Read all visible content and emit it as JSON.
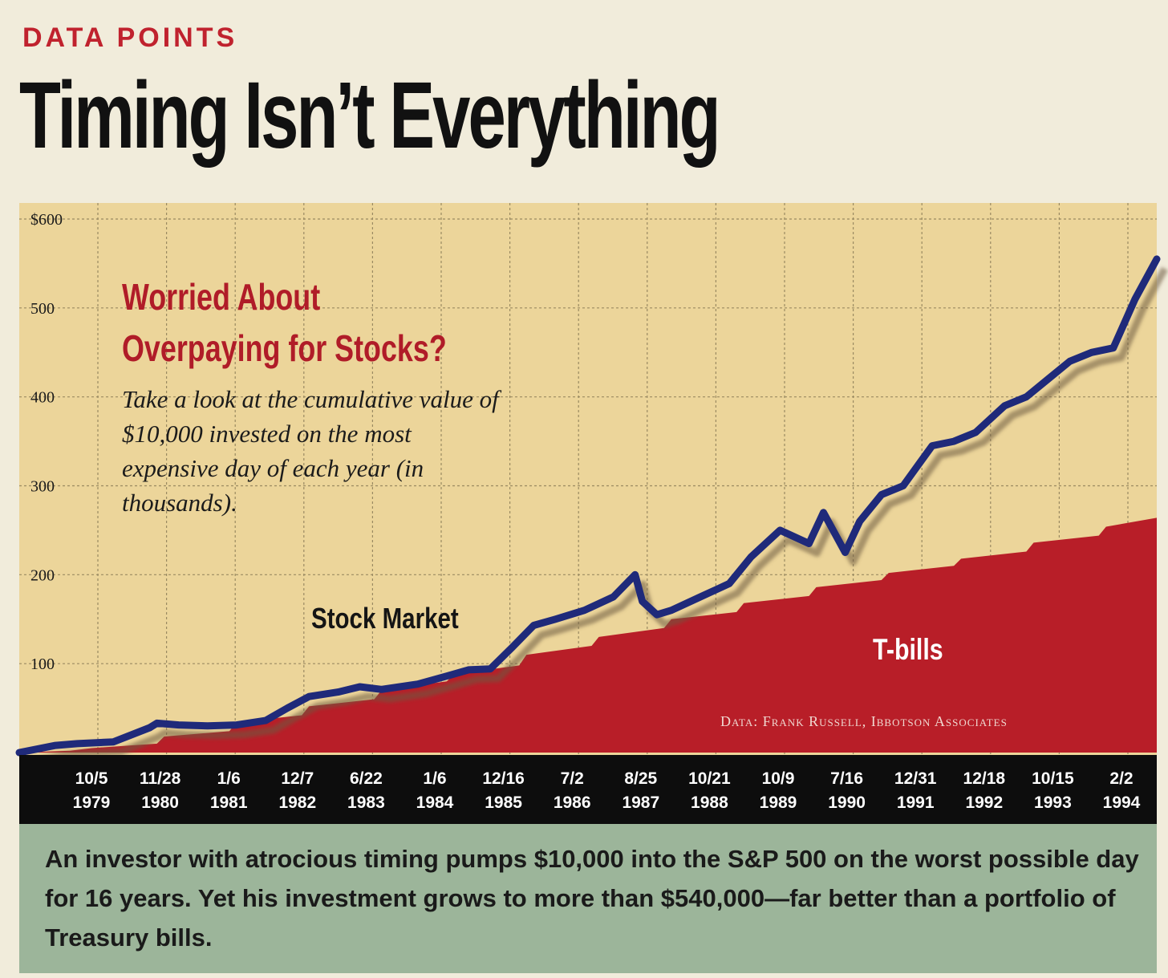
{
  "header": {
    "kicker": "DATA POINTS",
    "title": "Timing Isn’t Everything"
  },
  "annotation": {
    "subtitle_line1": "Worried About",
    "subtitle_line2": "Overpaying for Stocks?",
    "description": "Take a look at the cumulative value of $10,000 invested on the most expensive day of each year (in thousands).",
    "stock_label": "Stock Market",
    "tbills_label": "T-bills",
    "credit": "Data: Frank Russell, Ibbotson Associates"
  },
  "caption": "An investor with atrocious timing pumps $10,000 into the S&P 500 on the worst possible day for 16 years. Yet his investment grows to more than $540,000—far better than a portfolio of Treasury bills.",
  "colors": {
    "plot_background": "#ecd59a",
    "tbills_fill": "#b81e28",
    "stock_line": "#1f2a7a",
    "axis_band": "#0d0d0d",
    "caption_background": "#9cb59a",
    "headline_accent": "#c0222e"
  },
  "chart_data": {
    "type": "area",
    "ylim": [
      0,
      600
    ],
    "y_ticks": [
      "$600",
      "500",
      "400",
      "300",
      "200",
      "100"
    ],
    "y_tick_values": [
      600,
      500,
      400,
      300,
      200,
      100
    ],
    "categories": [
      {
        "date": "10/5",
        "year": "1979"
      },
      {
        "date": "11/28",
        "year": "1980"
      },
      {
        "date": "1/6",
        "year": "1981"
      },
      {
        "date": "12/7",
        "year": "1982"
      },
      {
        "date": "6/22",
        "year": "1983"
      },
      {
        "date": "1/6",
        "year": "1984"
      },
      {
        "date": "12/16",
        "year": "1985"
      },
      {
        "date": "7/2",
        "year": "1986"
      },
      {
        "date": "8/25",
        "year": "1987"
      },
      {
        "date": "10/21",
        "year": "1988"
      },
      {
        "date": "10/9",
        "year": "1989"
      },
      {
        "date": "7/16",
        "year": "1990"
      },
      {
        "date": "12/31",
        "year": "1991"
      },
      {
        "date": "12/18",
        "year": "1992"
      },
      {
        "date": "10/15",
        "year": "1993"
      },
      {
        "date": "2/2",
        "year": "1994"
      }
    ],
    "series": [
      {
        "name": "Stock Market",
        "x": [
          1979.0,
          1979.5,
          1979.8,
          1980.3,
          1980.8,
          1980.9,
          1981.2,
          1981.6,
          1982.0,
          1982.4,
          1982.7,
          1983.0,
          1983.4,
          1983.7,
          1984.0,
          1984.5,
          1984.9,
          1985.2,
          1985.5,
          1985.8,
          1986.1,
          1986.4,
          1986.8,
          1987.2,
          1987.5,
          1987.6,
          1987.8,
          1988.0,
          1988.4,
          1988.8,
          1989.1,
          1989.5,
          1989.9,
          1990.1,
          1990.4,
          1990.6,
          1990.9,
          1991.2,
          1991.6,
          1991.9,
          1992.2,
          1992.6,
          1992.9,
          1993.2,
          1993.5,
          1993.8,
          1994.1,
          1994.4,
          1994.7
        ],
        "values": [
          0,
          8,
          10,
          12,
          28,
          33,
          31,
          30,
          31,
          36,
          50,
          63,
          68,
          74,
          71,
          77,
          86,
          93,
          94,
          118,
          143,
          150,
          160,
          175,
          200,
          170,
          155,
          160,
          175,
          190,
          220,
          250,
          235,
          270,
          225,
          260,
          290,
          300,
          345,
          350,
          360,
          390,
          400,
          420,
          440,
          450,
          455,
          510,
          555
        ]
      },
      {
        "name": "T-bills",
        "x": [
          1979.0,
          1979.7,
          1980.0,
          1980.9,
          1981.0,
          1981.9,
          1982.0,
          1982.9,
          1983.0,
          1983.9,
          1984.0,
          1984.9,
          1985.0,
          1985.9,
          1986.0,
          1986.9,
          1987.0,
          1987.9,
          1988.0,
          1988.9,
          1989.0,
          1989.9,
          1990.0,
          1990.9,
          1991.0,
          1991.9,
          1992.0,
          1992.9,
          1993.0,
          1993.9,
          1994.0,
          1994.7
        ],
        "values": [
          0,
          2,
          5,
          10,
          18,
          24,
          34,
          42,
          52,
          60,
          70,
          80,
          88,
          98,
          110,
          120,
          130,
          140,
          150,
          158,
          168,
          176,
          186,
          194,
          202,
          210,
          218,
          226,
          236,
          244,
          254,
          264
        ]
      }
    ]
  }
}
